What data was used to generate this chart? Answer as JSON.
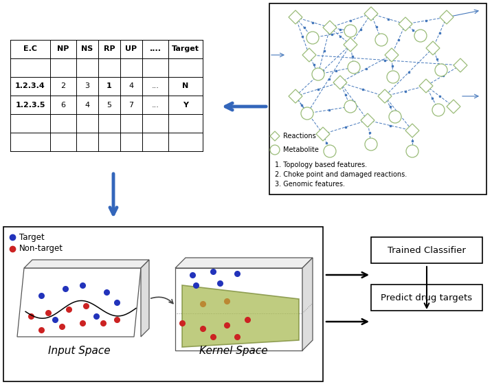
{
  "background_color": "#ffffff",
  "table_headers": [
    "E.C",
    "NP",
    "NS",
    "RP",
    "UP",
    "....",
    "Target"
  ],
  "table_row1": [
    "1.2.3.4",
    "2",
    "3",
    "1",
    "4",
    "...",
    "N"
  ],
  "table_row2": [
    "1.2.3.5",
    "6",
    "4",
    "5",
    "7",
    "...",
    "Y"
  ],
  "features_text": [
    "1. Topology based features.",
    "2. Choke point and damaged reactions.",
    "3. Genomic features."
  ],
  "legend_reactions": "Reactions",
  "legend_metabolite": "Metabolite",
  "legend_target": "Target",
  "legend_nontarget": "Non-target",
  "input_space_label": "Input Space",
  "kernel_space_label": "Kernel Space",
  "trained_classifier_label": "Trained Classifier",
  "predict_label": "Predict drug targets",
  "arrow_color": "#3366bb",
  "network_node_color": "#99bb77",
  "network_edge_color": "#4477bb",
  "blue_dot": "#2233bb",
  "red_dot": "#cc2222",
  "tan_dot": "#bb8833",
  "green_plane_face": "#aabb55",
  "green_plane_edge": "#778833"
}
